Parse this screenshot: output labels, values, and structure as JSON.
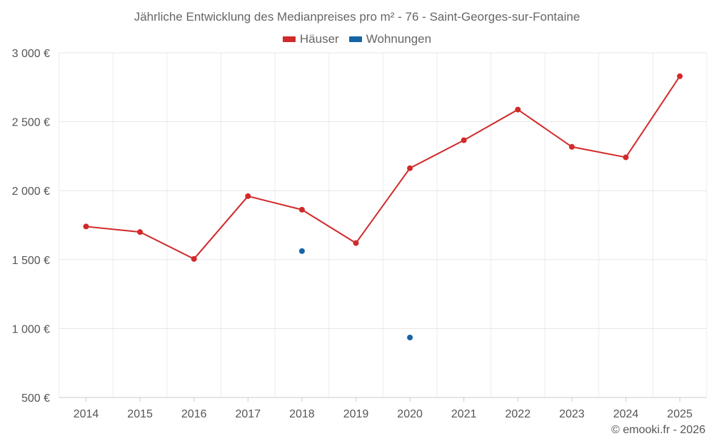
{
  "chart_data": {
    "type": "line",
    "title": "Jährliche Entwicklung des Medianpreises pro m² - 76 - Saint-Georges-sur-Fontaine",
    "categories": [
      "2014",
      "2015",
      "2016",
      "2017",
      "2018",
      "2019",
      "2020",
      "2021",
      "2022",
      "2023",
      "2024",
      "2025"
    ],
    "series": [
      {
        "name": "Häuser",
        "color": "#d12a2a",
        "values": [
          1740,
          1700,
          1505,
          1960,
          1862,
          1620,
          2163,
          2366,
          2588,
          2318,
          2242,
          2830
        ]
      },
      {
        "name": "Wohnungen",
        "color": "#1565a6",
        "values": [
          null,
          null,
          null,
          null,
          1562,
          null,
          935,
          null,
          null,
          null,
          null,
          null
        ]
      }
    ],
    "ylim": [
      500,
      3000
    ],
    "yticks": [
      500,
      1000,
      1500,
      2000,
      2500,
      3000
    ],
    "ytick_labels": [
      "500 €",
      "1 000 €",
      "1 500 €",
      "2 000 €",
      "2 500 €",
      "3 000 €"
    ],
    "grid": true,
    "legend_position": "top-center"
  },
  "credit": "© emooki.fr - 2026"
}
